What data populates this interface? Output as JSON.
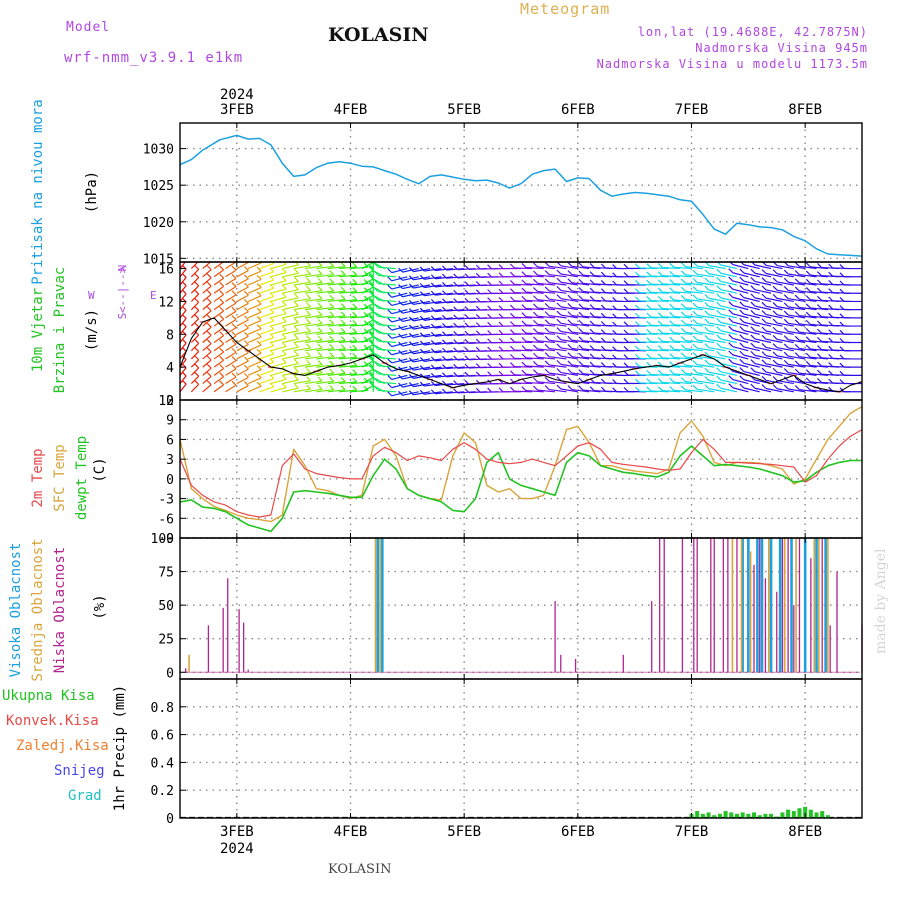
{
  "header": {
    "model_label": "Model",
    "model_name": "wrf-nmm_v3.9.1 e1km",
    "title": "KOLASIN",
    "product": "Meteogram",
    "location": "lon,lat (19.4688E, 42.7875N)",
    "elevation": "Nadmorska Visina 945m",
    "model_elevation": "Nadmorska Visina u modelu 1173.5m",
    "footer_title": "KOLASIN",
    "watermark": "made by Angel",
    "year": "2024"
  },
  "colors": {
    "pressure": "#1ca0e0",
    "t2m": "#e84a4a",
    "tsfc": "#d9a53b",
    "dewpt": "#22c322",
    "high_cloud": "#1ca0e0",
    "mid_cloud": "#d9a53b",
    "low_cloud": "#b2238f",
    "total_precip": "#22c322",
    "conv_precip": "#e84a4a",
    "freezing": "#f08030",
    "snow": "#4848e8",
    "hail": "#20c0c0",
    "wind_label": "#22c322",
    "wind_axis": "#b048e0",
    "title_purple": "#b048e0",
    "title_gold": "#e0b050",
    "watermark": "#d0d0d0"
  },
  "chart_data": [
    {
      "id": "pressure",
      "type": "line",
      "title": "",
      "ylabel": [
        "Pritisak na nivou mora",
        "(hPa)"
      ],
      "ylim": [
        1014.5,
        1033.5
      ],
      "yticks": [
        1015,
        1020,
        1025,
        1030
      ],
      "x_unit": "days since 2024-02-02 12:00 UTC",
      "series": [
        {
          "name": "Pritisak na nivou mora",
          "x": [
            0.0,
            0.1,
            0.2,
            0.35,
            0.5,
            0.6,
            0.7,
            0.8,
            0.9,
            1.0,
            1.1,
            1.2,
            1.3,
            1.4,
            1.5,
            1.6,
            1.7,
            1.8,
            1.9,
            2.0,
            2.1,
            2.2,
            2.3,
            2.4,
            2.5,
            2.6,
            2.7,
            2.8,
            2.9,
            3.0,
            3.1,
            3.2,
            3.3,
            3.4,
            3.5,
            3.6,
            3.7,
            3.8,
            3.9,
            4.0,
            4.1,
            4.2,
            4.3,
            4.4,
            4.5,
            4.6,
            4.7,
            4.8,
            4.9,
            5.0,
            5.1,
            5.2,
            5.3,
            5.4,
            5.5,
            5.6,
            5.7,
            5.8,
            5.9,
            6.0
          ],
          "values": [
            1027.8,
            1028.5,
            1029.8,
            1031.2,
            1031.8,
            1031.3,
            1031.4,
            1030.5,
            1028.0,
            1026.2,
            1026.4,
            1027.4,
            1028.0,
            1028.2,
            1028.0,
            1027.6,
            1027.5,
            1027.0,
            1026.5,
            1025.8,
            1025.2,
            1026.2,
            1026.4,
            1026.1,
            1025.8,
            1025.6,
            1025.7,
            1025.3,
            1024.6,
            1025.2,
            1026.5,
            1027.0,
            1027.2,
            1025.5,
            1026.0,
            1025.9,
            1024.3,
            1023.5,
            1023.8,
            1024.0,
            1023.9,
            1023.7,
            1023.5,
            1023.0,
            1022.8,
            1021.0,
            1019.0,
            1018.3,
            1019.8,
            1019.6,
            1019.3,
            1019.2,
            1018.9,
            1018.0,
            1017.4,
            1016.3,
            1015.6,
            1015.5,
            1015.4,
            1015.3
          ]
        }
      ]
    },
    {
      "id": "wind",
      "type": "line",
      "title": "",
      "ylabel": [
        "10m Vjetar",
        "Brzina i Pravac",
        "(m/s)"
      ],
      "direction_key": [
        "N",
        "<--|-->",
        "W",
        "E",
        "S"
      ],
      "ylim": [
        0,
        16.8
      ],
      "yticks": [
        0,
        4,
        8,
        12,
        16
      ],
      "barb_levels": [
        1,
        2,
        3,
        4,
        5,
        6,
        7,
        8,
        9,
        10,
        11,
        12,
        13,
        14,
        15,
        16
      ],
      "x_unit": "days since 2024-02-02 12:00 UTC",
      "series": [
        {
          "name": "Brzina",
          "x": [
            0.0,
            0.1,
            0.2,
            0.3,
            0.4,
            0.5,
            0.6,
            0.7,
            0.8,
            0.9,
            1.0,
            1.1,
            1.2,
            1.3,
            1.4,
            1.5,
            1.6,
            1.7,
            1.8,
            1.9,
            2.0,
            2.1,
            2.2,
            2.3,
            2.4,
            2.5,
            2.6,
            2.7,
            2.8,
            2.9,
            3.0,
            3.1,
            3.2,
            3.3,
            3.4,
            3.5,
            3.6,
            3.7,
            3.8,
            3.9,
            4.0,
            4.1,
            4.2,
            4.3,
            4.4,
            4.5,
            4.6,
            4.7,
            4.8,
            4.9,
            5.0,
            5.1,
            5.2,
            5.3,
            5.4,
            5.5,
            5.6,
            5.7,
            5.8,
            5.9,
            6.0
          ],
          "values": [
            4.0,
            7.5,
            9.5,
            10.0,
            8.5,
            7.0,
            6.0,
            5.0,
            4.0,
            3.8,
            3.2,
            3.0,
            3.5,
            4.0,
            4.2,
            4.5,
            5.0,
            5.5,
            4.5,
            3.8,
            3.5,
            3.0,
            2.5,
            2.0,
            1.5,
            1.8,
            2.0,
            2.2,
            2.5,
            2.0,
            2.5,
            2.8,
            3.0,
            2.5,
            2.2,
            2.0,
            2.5,
            3.0,
            3.2,
            3.5,
            3.8,
            4.0,
            4.2,
            4.0,
            4.5,
            5.0,
            5.5,
            5.0,
            4.0,
            3.5,
            3.0,
            2.5,
            2.0,
            2.5,
            3.0,
            2.0,
            1.5,
            1.2,
            1.0,
            1.8,
            2.2
          ]
        },
        {
          "name": "Pravac (deg)",
          "x": [
            0.0,
            0.5,
            1.0,
            1.5,
            2.0,
            2.5,
            3.0,
            3.5,
            4.0,
            4.5,
            5.0,
            5.5,
            6.0
          ],
          "values": [
            200,
            220,
            250,
            260,
            60,
            80,
            90,
            110,
            90,
            100,
            120,
            110,
            90
          ]
        }
      ]
    },
    {
      "id": "temperature",
      "type": "line",
      "title": "",
      "ylabel": [
        "2m Temp",
        "SFC Temp",
        "dewpt Temp",
        "(C)"
      ],
      "ylim": [
        -9,
        12
      ],
      "yticks": [
        -9,
        -6,
        -3,
        0,
        3,
        6,
        9,
        12
      ],
      "x_unit": "days since 2024-02-02 12:00 UTC",
      "series": [
        {
          "name": "2m Temp",
          "x": [
            0.0,
            0.1,
            0.2,
            0.3,
            0.4,
            0.5,
            0.6,
            0.7,
            0.8,
            0.9,
            1.0,
            1.1,
            1.2,
            1.3,
            1.4,
            1.5,
            1.6,
            1.7,
            1.8,
            1.9,
            2.0,
            2.1,
            2.2,
            2.3,
            2.4,
            2.5,
            2.6,
            2.7,
            2.8,
            2.9,
            3.0,
            3.1,
            3.2,
            3.3,
            3.4,
            3.5,
            3.6,
            3.7,
            3.8,
            3.9,
            4.0,
            4.1,
            4.2,
            4.3,
            4.4,
            4.5,
            4.6,
            4.7,
            4.8,
            4.9,
            5.0,
            5.1,
            5.2,
            5.3,
            5.4,
            5.5,
            5.6,
            5.7,
            5.8,
            5.9,
            6.0
          ],
          "values": [
            3.0,
            -1.0,
            -2.5,
            -3.5,
            -4.0,
            -5.0,
            -5.5,
            -5.8,
            -5.5,
            2.0,
            3.8,
            1.5,
            0.8,
            0.5,
            0.2,
            0.0,
            0.0,
            3.5,
            4.8,
            4.0,
            2.8,
            3.5,
            3.2,
            2.8,
            4.5,
            5.5,
            4.5,
            3.0,
            2.5,
            2.3,
            2.5,
            3.0,
            2.5,
            2.0,
            3.5,
            5.0,
            5.5,
            4.5,
            2.5,
            2.2,
            2.0,
            1.8,
            1.5,
            1.3,
            1.5,
            4.0,
            6.0,
            4.5,
            2.5,
            2.5,
            2.4,
            2.3,
            2.2,
            2.0,
            1.8,
            -0.5,
            0.5,
            3.0,
            5.0,
            6.5,
            7.5
          ]
        },
        {
          "name": "SFC Temp",
          "x": [
            0.0,
            0.1,
            0.2,
            0.3,
            0.4,
            0.5,
            0.6,
            0.7,
            0.8,
            0.9,
            1.0,
            1.1,
            1.2,
            1.3,
            1.4,
            1.5,
            1.6,
            1.7,
            1.8,
            1.9,
            2.0,
            2.1,
            2.2,
            2.3,
            2.4,
            2.5,
            2.6,
            2.7,
            2.8,
            2.9,
            3.0,
            3.1,
            3.2,
            3.3,
            3.4,
            3.5,
            3.6,
            3.7,
            3.8,
            3.9,
            4.0,
            4.1,
            4.2,
            4.3,
            4.4,
            4.5,
            4.6,
            4.7,
            4.8,
            4.9,
            5.0,
            5.1,
            5.2,
            5.3,
            5.4,
            5.5,
            5.6,
            5.7,
            5.8,
            5.9,
            6.0
          ],
          "values": [
            6.0,
            -1.5,
            -3.0,
            -4.2,
            -4.8,
            -5.5,
            -6.0,
            -6.2,
            -6.5,
            -5.5,
            4.5,
            2.0,
            -1.5,
            -1.8,
            -2.5,
            -3.0,
            -2.5,
            5.0,
            6.0,
            3.5,
            -1.5,
            -2.5,
            -3.0,
            -3.2,
            3.5,
            7.0,
            5.5,
            -1.0,
            -2.0,
            -1.5,
            -3.0,
            -3.0,
            -2.5,
            2.0,
            7.5,
            8.0,
            5.5,
            2.0,
            2.0,
            1.5,
            1.2,
            1.0,
            0.8,
            1.5,
            7.0,
            8.8,
            6.5,
            2.5,
            2.0,
            2.5,
            2.5,
            2.4,
            2.0,
            1.5,
            -0.8,
            0.0,
            3.0,
            6.0,
            8.0,
            10.0,
            11.0
          ]
        },
        {
          "name": "dewpt Temp",
          "x": [
            0.0,
            0.1,
            0.2,
            0.3,
            0.4,
            0.5,
            0.6,
            0.7,
            0.8,
            0.9,
            1.0,
            1.1,
            1.2,
            1.3,
            1.4,
            1.5,
            1.6,
            1.7,
            1.8,
            1.9,
            2.0,
            2.1,
            2.2,
            2.3,
            2.4,
            2.5,
            2.6,
            2.7,
            2.8,
            2.9,
            3.0,
            3.1,
            3.2,
            3.3,
            3.4,
            3.5,
            3.6,
            3.7,
            3.8,
            3.9,
            4.0,
            4.1,
            4.2,
            4.3,
            4.4,
            4.5,
            4.6,
            4.7,
            4.8,
            4.9,
            5.0,
            5.1,
            5.2,
            5.3,
            5.4,
            5.5,
            5.6,
            5.7,
            5.8,
            5.9,
            6.0
          ],
          "values": [
            -3.5,
            -3.2,
            -4.3,
            -4.5,
            -5.0,
            -6.0,
            -7.0,
            -7.5,
            -8.0,
            -6.0,
            -2.0,
            -1.8,
            -2.0,
            -2.2,
            -2.5,
            -2.8,
            -2.8,
            0.5,
            3.0,
            1.5,
            -1.5,
            -2.5,
            -3.0,
            -3.5,
            -4.8,
            -5.0,
            -3.0,
            2.5,
            4.0,
            0.0,
            -1.0,
            -1.5,
            -2.0,
            -2.5,
            2.5,
            4.0,
            3.5,
            2.0,
            1.5,
            1.0,
            0.8,
            0.5,
            0.3,
            1.0,
            3.5,
            5.0,
            3.5,
            2.0,
            2.2,
            2.0,
            1.8,
            1.5,
            1.0,
            0.5,
            -0.5,
            -0.3,
            1.0,
            2.0,
            2.5,
            2.8,
            2.8
          ]
        }
      ]
    },
    {
      "id": "clouds",
      "type": "bar",
      "title": "",
      "ylabel": [
        "Visoka Oblacnost",
        "Srednja Oblacnost",
        "Niska Oblacnost",
        "(%)"
      ],
      "ylim": [
        -5,
        100
      ],
      "yticks": [
        0,
        25,
        50,
        75,
        100
      ],
      "x_unit": "days since 2024-02-02 12:00 UTC",
      "series": [
        {
          "name": "Niska Oblacnost",
          "x": [
            0.05,
            0.25,
            0.38,
            0.42,
            0.52,
            0.56,
            0.6,
            3.3,
            3.35,
            3.48,
            3.9,
            4.15,
            4.22,
            4.26,
            4.42,
            4.52,
            4.55,
            4.67,
            4.7,
            4.78,
            4.82,
            4.9,
            5.05,
            5.1,
            5.15,
            5.25,
            5.3,
            5.35,
            5.4,
            5.45,
            5.55,
            5.65,
            5.72,
            5.78,
            6.0
          ],
          "values": [
            3,
            35,
            48,
            70,
            47,
            37,
            2,
            53,
            13,
            10,
            13,
            53,
            100,
            100,
            100,
            100,
            100,
            100,
            100,
            100,
            100,
            100,
            80,
            100,
            70,
            60,
            100,
            100,
            50,
            100,
            85,
            100,
            35,
            75,
            35
          ]
        },
        {
          "name": "Srednja Oblacnost",
          "x": [
            0.08,
            1.72,
            1.76,
            4.86,
            4.94,
            5.02,
            5.18,
            5.32,
            5.42,
            5.58,
            5.62,
            5.7
          ],
          "values": [
            13,
            100,
            100,
            100,
            100,
            90,
            100,
            100,
            100,
            100,
            100,
            100
          ]
        },
        {
          "name": "Visoka Oblacnost",
          "x": [
            1.74,
            1.78,
            4.95,
            5.0,
            5.08,
            5.12,
            5.2,
            5.28,
            5.38,
            5.5,
            5.6,
            5.68
          ],
          "values": [
            100,
            100,
            100,
            100,
            100,
            100,
            100,
            100,
            100,
            100,
            100,
            100
          ]
        }
      ]
    },
    {
      "id": "precip",
      "type": "bar",
      "title": "",
      "ylabel": [
        "1hr Precip (mm)"
      ],
      "legend": [
        "Ukupna Kisa",
        "Konvek.Kisa",
        "Zaledj.Kisa",
        "Snijeg",
        "Grad"
      ],
      "ylim": [
        0,
        1.0
      ],
      "yticks": [
        0,
        0.2,
        0.4,
        0.6,
        0.8
      ],
      "x_unit": "days since 2024-02-02 12:00 UTC",
      "series": [
        {
          "name": "Ukupna Kisa",
          "x": [
            4.5,
            4.55,
            4.6,
            4.65,
            4.7,
            4.75,
            4.8,
            4.85,
            4.9,
            4.95,
            5.0,
            5.05,
            5.1,
            5.15,
            5.2,
            5.25,
            5.3,
            5.35,
            5.4,
            5.45,
            5.5,
            5.55,
            5.6,
            5.65,
            5.7
          ],
          "values": [
            0.03,
            0.05,
            0.03,
            0.04,
            0.02,
            0.03,
            0.05,
            0.04,
            0.03,
            0.04,
            0.03,
            0.04,
            0.02,
            0.03,
            0.03,
            0.01,
            0.04,
            0.06,
            0.05,
            0.07,
            0.08,
            0.06,
            0.04,
            0.05,
            0.02
          ]
        }
      ]
    }
  ],
  "time_axis": {
    "day_labels": [
      "3FEB",
      "4FEB",
      "5FEB",
      "6FEB",
      "7FEB",
      "8FEB"
    ],
    "day_positions": [
      0.5,
      1.5,
      2.5,
      3.5,
      4.5,
      5.5
    ],
    "xlim": [
      0,
      6
    ]
  }
}
